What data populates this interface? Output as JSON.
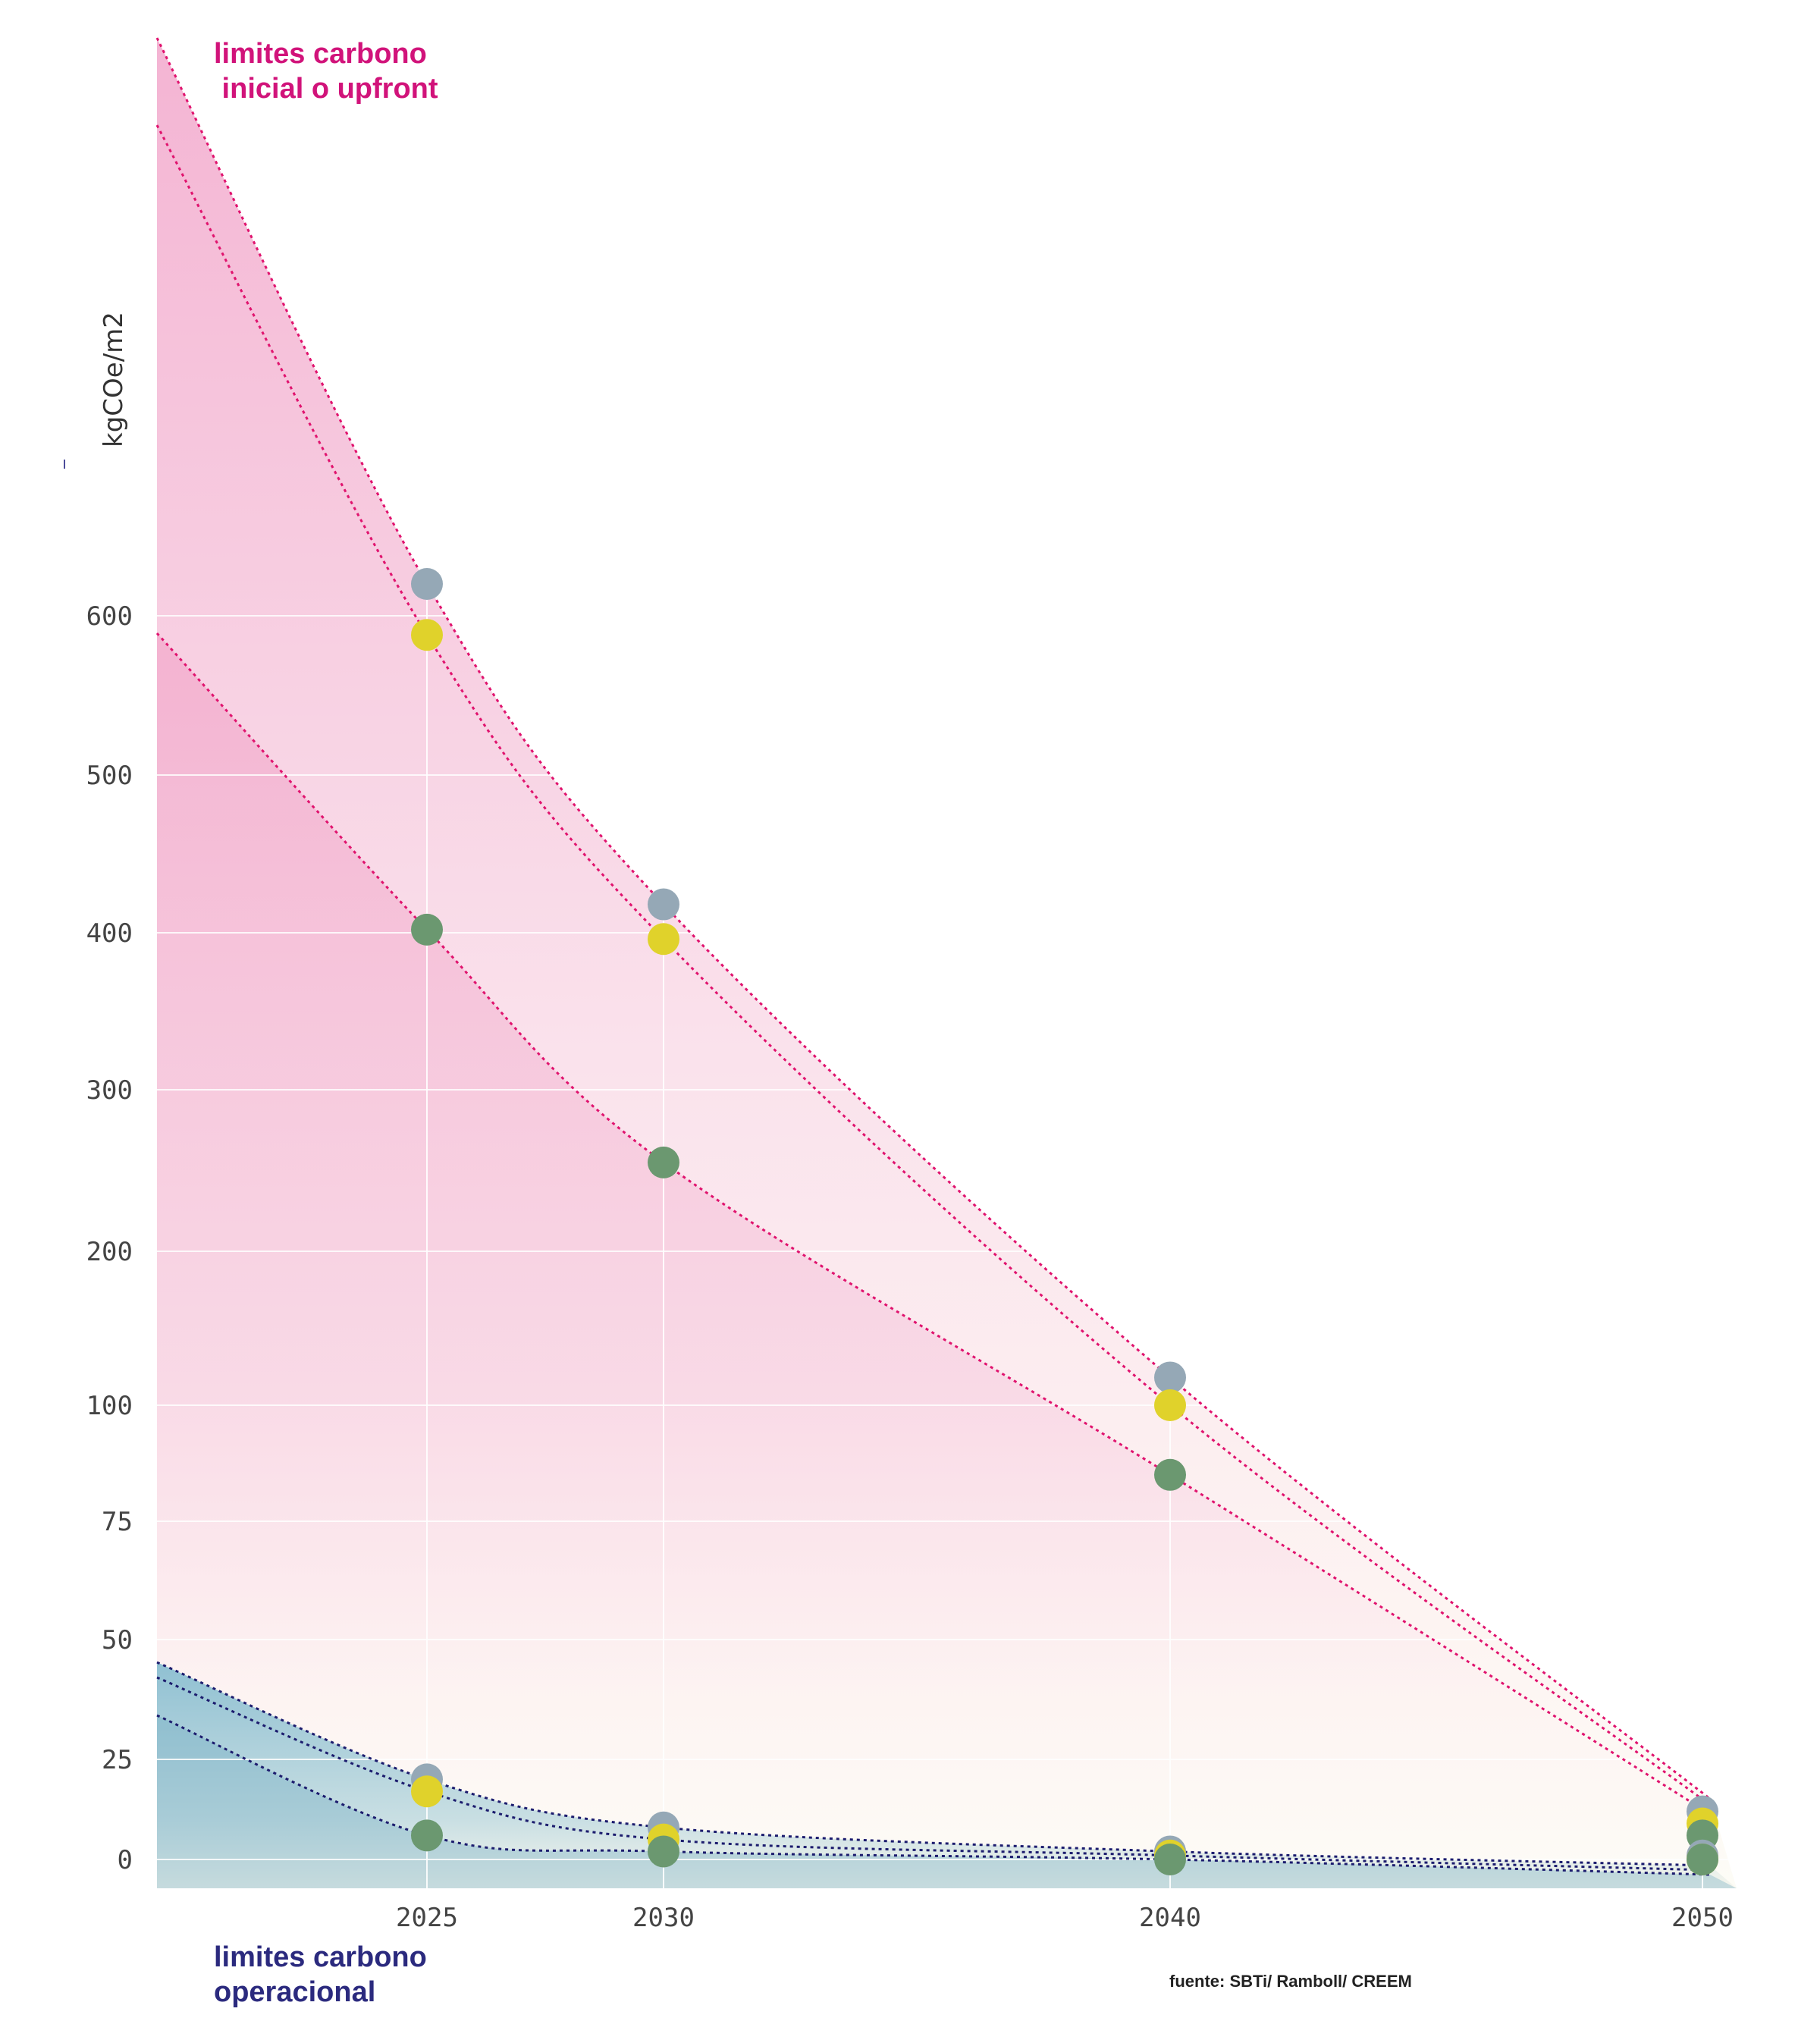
{
  "titles": {
    "upfront": "limites carbono\n inicial o upfront",
    "operational": "limites carbono\noperacional",
    "source": "fuente: SBTi/ Ramboll/ CREEM"
  },
  "colors": {
    "upfront_line": "#e0136e",
    "operational_line": "#1c1c6e",
    "grey_point": "#95a8b6",
    "yellow_point": "#e0d22b",
    "green_point": "#6b9870"
  },
  "chart_data": {
    "type": "scatter",
    "x_categories": [
      "2025",
      "2030",
      "2040",
      "2050"
    ],
    "yaxis": {
      "label": "kgCOe/m2",
      "ticks": [
        "0",
        "25",
        "50",
        "75",
        "100",
        "200",
        "300",
        "400",
        "500",
        "600"
      ]
    },
    "grid": true,
    "upfront_series": [
      {
        "color": "grey",
        "values": [
          620,
          418,
          118,
          12
        ]
      },
      {
        "color": "yellow",
        "values": [
          588,
          396,
          100,
          9
        ]
      },
      {
        "color": "green",
        "values": [
          402,
          255,
          85,
          6
        ]
      }
    ],
    "operational_series": [
      {
        "color": "grey",
        "values": [
          20,
          8,
          2,
          1
        ]
      },
      {
        "color": "yellow",
        "values": [
          17,
          5,
          1,
          0
        ]
      },
      {
        "color": "green",
        "values": [
          6,
          2,
          0,
          0
        ]
      }
    ]
  }
}
